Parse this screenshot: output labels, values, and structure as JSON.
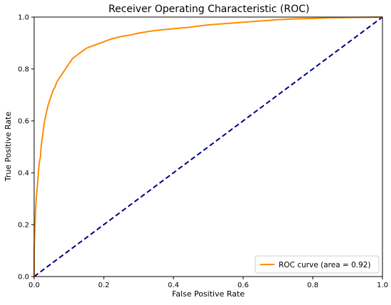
{
  "chart_data": {
    "type": "line",
    "title": "Receiver Operating Characteristic (ROC)",
    "xlabel": "False Positive Rate",
    "ylabel": "True Positive Rate",
    "xlim": [
      0.0,
      1.0
    ],
    "ylim": [
      0.0,
      1.0
    ],
    "x_ticks": [
      "0.0",
      "0.2",
      "0.4",
      "0.6",
      "0.8",
      "1.0"
    ],
    "y_ticks": [
      "0.0",
      "0.2",
      "0.4",
      "0.6",
      "0.8",
      "1.0"
    ],
    "grid": false,
    "legend_position": "lower-right",
    "series": [
      {
        "name": "ROC curve (area = 0.92)",
        "color": "#ff8c00",
        "style": "solid",
        "x": [
          0.0,
          0.0,
          0.002,
          0.004,
          0.006,
          0.008,
          0.01,
          0.012,
          0.015,
          0.018,
          0.02,
          0.025,
          0.03,
          0.035,
          0.04,
          0.045,
          0.05,
          0.055,
          0.06,
          0.065,
          0.07,
          0.08,
          0.09,
          0.1,
          0.11,
          0.12,
          0.13,
          0.14,
          0.15,
          0.16,
          0.18,
          0.2,
          0.22,
          0.25,
          0.28,
          0.3,
          0.33,
          0.36,
          0.4,
          0.44,
          0.47,
          0.5,
          0.55,
          0.6,
          0.65,
          0.7,
          0.75,
          0.8,
          0.85,
          0.9,
          0.95,
          1.0
        ],
        "y": [
          0.0,
          0.1,
          0.18,
          0.25,
          0.3,
          0.33,
          0.36,
          0.4,
          0.44,
          0.46,
          0.5,
          0.55,
          0.6,
          0.63,
          0.66,
          0.68,
          0.7,
          0.72,
          0.73,
          0.75,
          0.76,
          0.78,
          0.8,
          0.82,
          0.84,
          0.85,
          0.86,
          0.87,
          0.88,
          0.885,
          0.895,
          0.905,
          0.915,
          0.925,
          0.932,
          0.938,
          0.945,
          0.95,
          0.955,
          0.96,
          0.965,
          0.97,
          0.975,
          0.98,
          0.985,
          0.99,
          0.993,
          0.995,
          0.997,
          0.998,
          0.999,
          1.0
        ]
      },
      {
        "name": "",
        "color": "#000080",
        "style": "dashed",
        "x": [
          0.0,
          1.0
        ],
        "y": [
          0.0,
          1.0
        ]
      }
    ],
    "legend": [
      "ROC curve (area = 0.92)"
    ]
  }
}
